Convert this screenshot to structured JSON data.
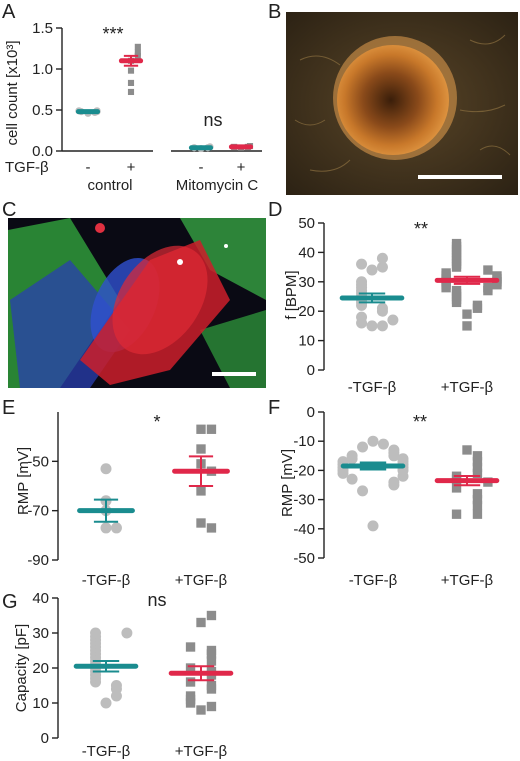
{
  "colors": {
    "teal": "#1A8C8F",
    "red": "#E0284A",
    "circle_gray": "#BDBDBD",
    "square_gray": "#8C8C8C"
  },
  "chart_data": [
    {
      "panel": "A",
      "type": "scatter",
      "ylabel": "cell count [x10³]",
      "ylim": [
        0,
        1.5
      ],
      "yticks": [
        "0.0",
        "0.5",
        "1.0",
        "1.5"
      ],
      "row_label": "TGF-β",
      "groups": [
        {
          "tgf": "-",
          "marker": "circle",
          "mean": 0.48,
          "sem": 0.01,
          "values": [
            0.46,
            0.47,
            0.48,
            0.48,
            0.49,
            0.49
          ]
        },
        {
          "tgf": "+",
          "marker": "square",
          "mean": 1.1,
          "sem": 0.06,
          "values": [
            0.72,
            0.83,
            0.98,
            1.1,
            1.16,
            1.2,
            1.27
          ]
        },
        {
          "tgf": "-",
          "marker": "circle",
          "mean": 0.04,
          "sem": 0.005,
          "values": [
            0.03,
            0.04,
            0.04,
            0.05
          ]
        },
        {
          "tgf": "+",
          "marker": "square",
          "mean": 0.05,
          "sem": 0.005,
          "values": [
            0.04,
            0.05,
            0.05,
            0.06
          ]
        }
      ],
      "conditions": [
        "control",
        "Mitomycin C"
      ],
      "significance": [
        "***",
        "ns"
      ]
    },
    {
      "panel": "D",
      "type": "scatter",
      "ylabel": "f [BPM]",
      "ylim": [
        0,
        50
      ],
      "yticks": [
        "0",
        "10",
        "20",
        "30",
        "40",
        "50"
      ],
      "categories": [
        "-TGF-β",
        "+TGF-β"
      ],
      "groups": [
        {
          "marker": "circle",
          "mean": 24.5,
          "sem": 1.5,
          "values": [
            15,
            15,
            16,
            17,
            18,
            20,
            21,
            22,
            23,
            24,
            25,
            26,
            27,
            28,
            29,
            30,
            34,
            35,
            36,
            38
          ]
        },
        {
          "marker": "square",
          "mean": 30.5,
          "sem": 1.2,
          "values": [
            15,
            19,
            21,
            22,
            23,
            24,
            25,
            26,
            27,
            27,
            28,
            28,
            29,
            29,
            30,
            30,
            31,
            31,
            32,
            32,
            33,
            34,
            35,
            36,
            37,
            38,
            39,
            40,
            41,
            42,
            43
          ]
        }
      ],
      "significance": "**"
    },
    {
      "panel": "E",
      "type": "scatter",
      "ylabel": "RMP [mV]",
      "ylim": [
        -90,
        -30
      ],
      "yticks": [
        "-90",
        "-70",
        "-50"
      ],
      "categories": [
        "-TGF-β",
        "+TGF-β"
      ],
      "groups": [
        {
          "marker": "circle",
          "mean": -70,
          "sem": 4.5,
          "values": [
            -53,
            -66,
            -70,
            -77,
            -77
          ]
        },
        {
          "marker": "square",
          "mean": -54,
          "sem": 6,
          "values": [
            -37,
            -37,
            -45,
            -51,
            -54,
            -62,
            -75,
            -77
          ]
        }
      ],
      "significance": "*"
    },
    {
      "panel": "F",
      "type": "scatter",
      "ylabel": "RMP [mV]",
      "ylim": [
        -50,
        0
      ],
      "yticks": [
        "-50",
        "-40",
        "-30",
        "-20",
        "-10",
        "0"
      ],
      "categories": [
        "-TGF-β",
        "+TGF-β"
      ],
      "groups": [
        {
          "marker": "circle",
          "mean": -18.5,
          "sem": 1.2,
          "values": [
            -10,
            -11,
            -12,
            -13,
            -14,
            -15,
            -15,
            -16,
            -16,
            -17,
            -17,
            -18,
            -18,
            -19,
            -19,
            -20,
            -20,
            -21,
            -22,
            -23,
            -24,
            -25,
            -27,
            -39
          ]
        },
        {
          "marker": "square",
          "mean": -23.5,
          "sem": 1.6,
          "values": [
            -13,
            -15,
            -17,
            -19,
            -21,
            -22,
            -23,
            -24,
            -26,
            -28,
            -30,
            -32,
            -35,
            -35
          ]
        }
      ],
      "significance": "**"
    },
    {
      "panel": "G",
      "type": "scatter",
      "ylabel": "Capacity [pF]",
      "ylim": [
        0,
        40
      ],
      "yticks": [
        "0",
        "10",
        "20",
        "30",
        "40"
      ],
      "categories": [
        "-TGF-β",
        "+TGF-β"
      ],
      "groups": [
        {
          "marker": "circle",
          "mean": 20.5,
          "sem": 1.5,
          "values": [
            10,
            12,
            14,
            15,
            16,
            17,
            18,
            19,
            20,
            21,
            22,
            23,
            24,
            25,
            26,
            27,
            28,
            29,
            30,
            30
          ]
        },
        {
          "marker": "square",
          "mean": 18.5,
          "sem": 2,
          "values": [
            8,
            9,
            10,
            11,
            12,
            14,
            15,
            16,
            18,
            19,
            20,
            22,
            24,
            25,
            26,
            33,
            35
          ]
        }
      ],
      "significance": "ns"
    }
  ],
  "images": [
    {
      "panel": "B",
      "icon": "spheroid-micrograph-icon"
    },
    {
      "panel": "C",
      "icon": "fluorescence-micrograph-icon"
    }
  ]
}
